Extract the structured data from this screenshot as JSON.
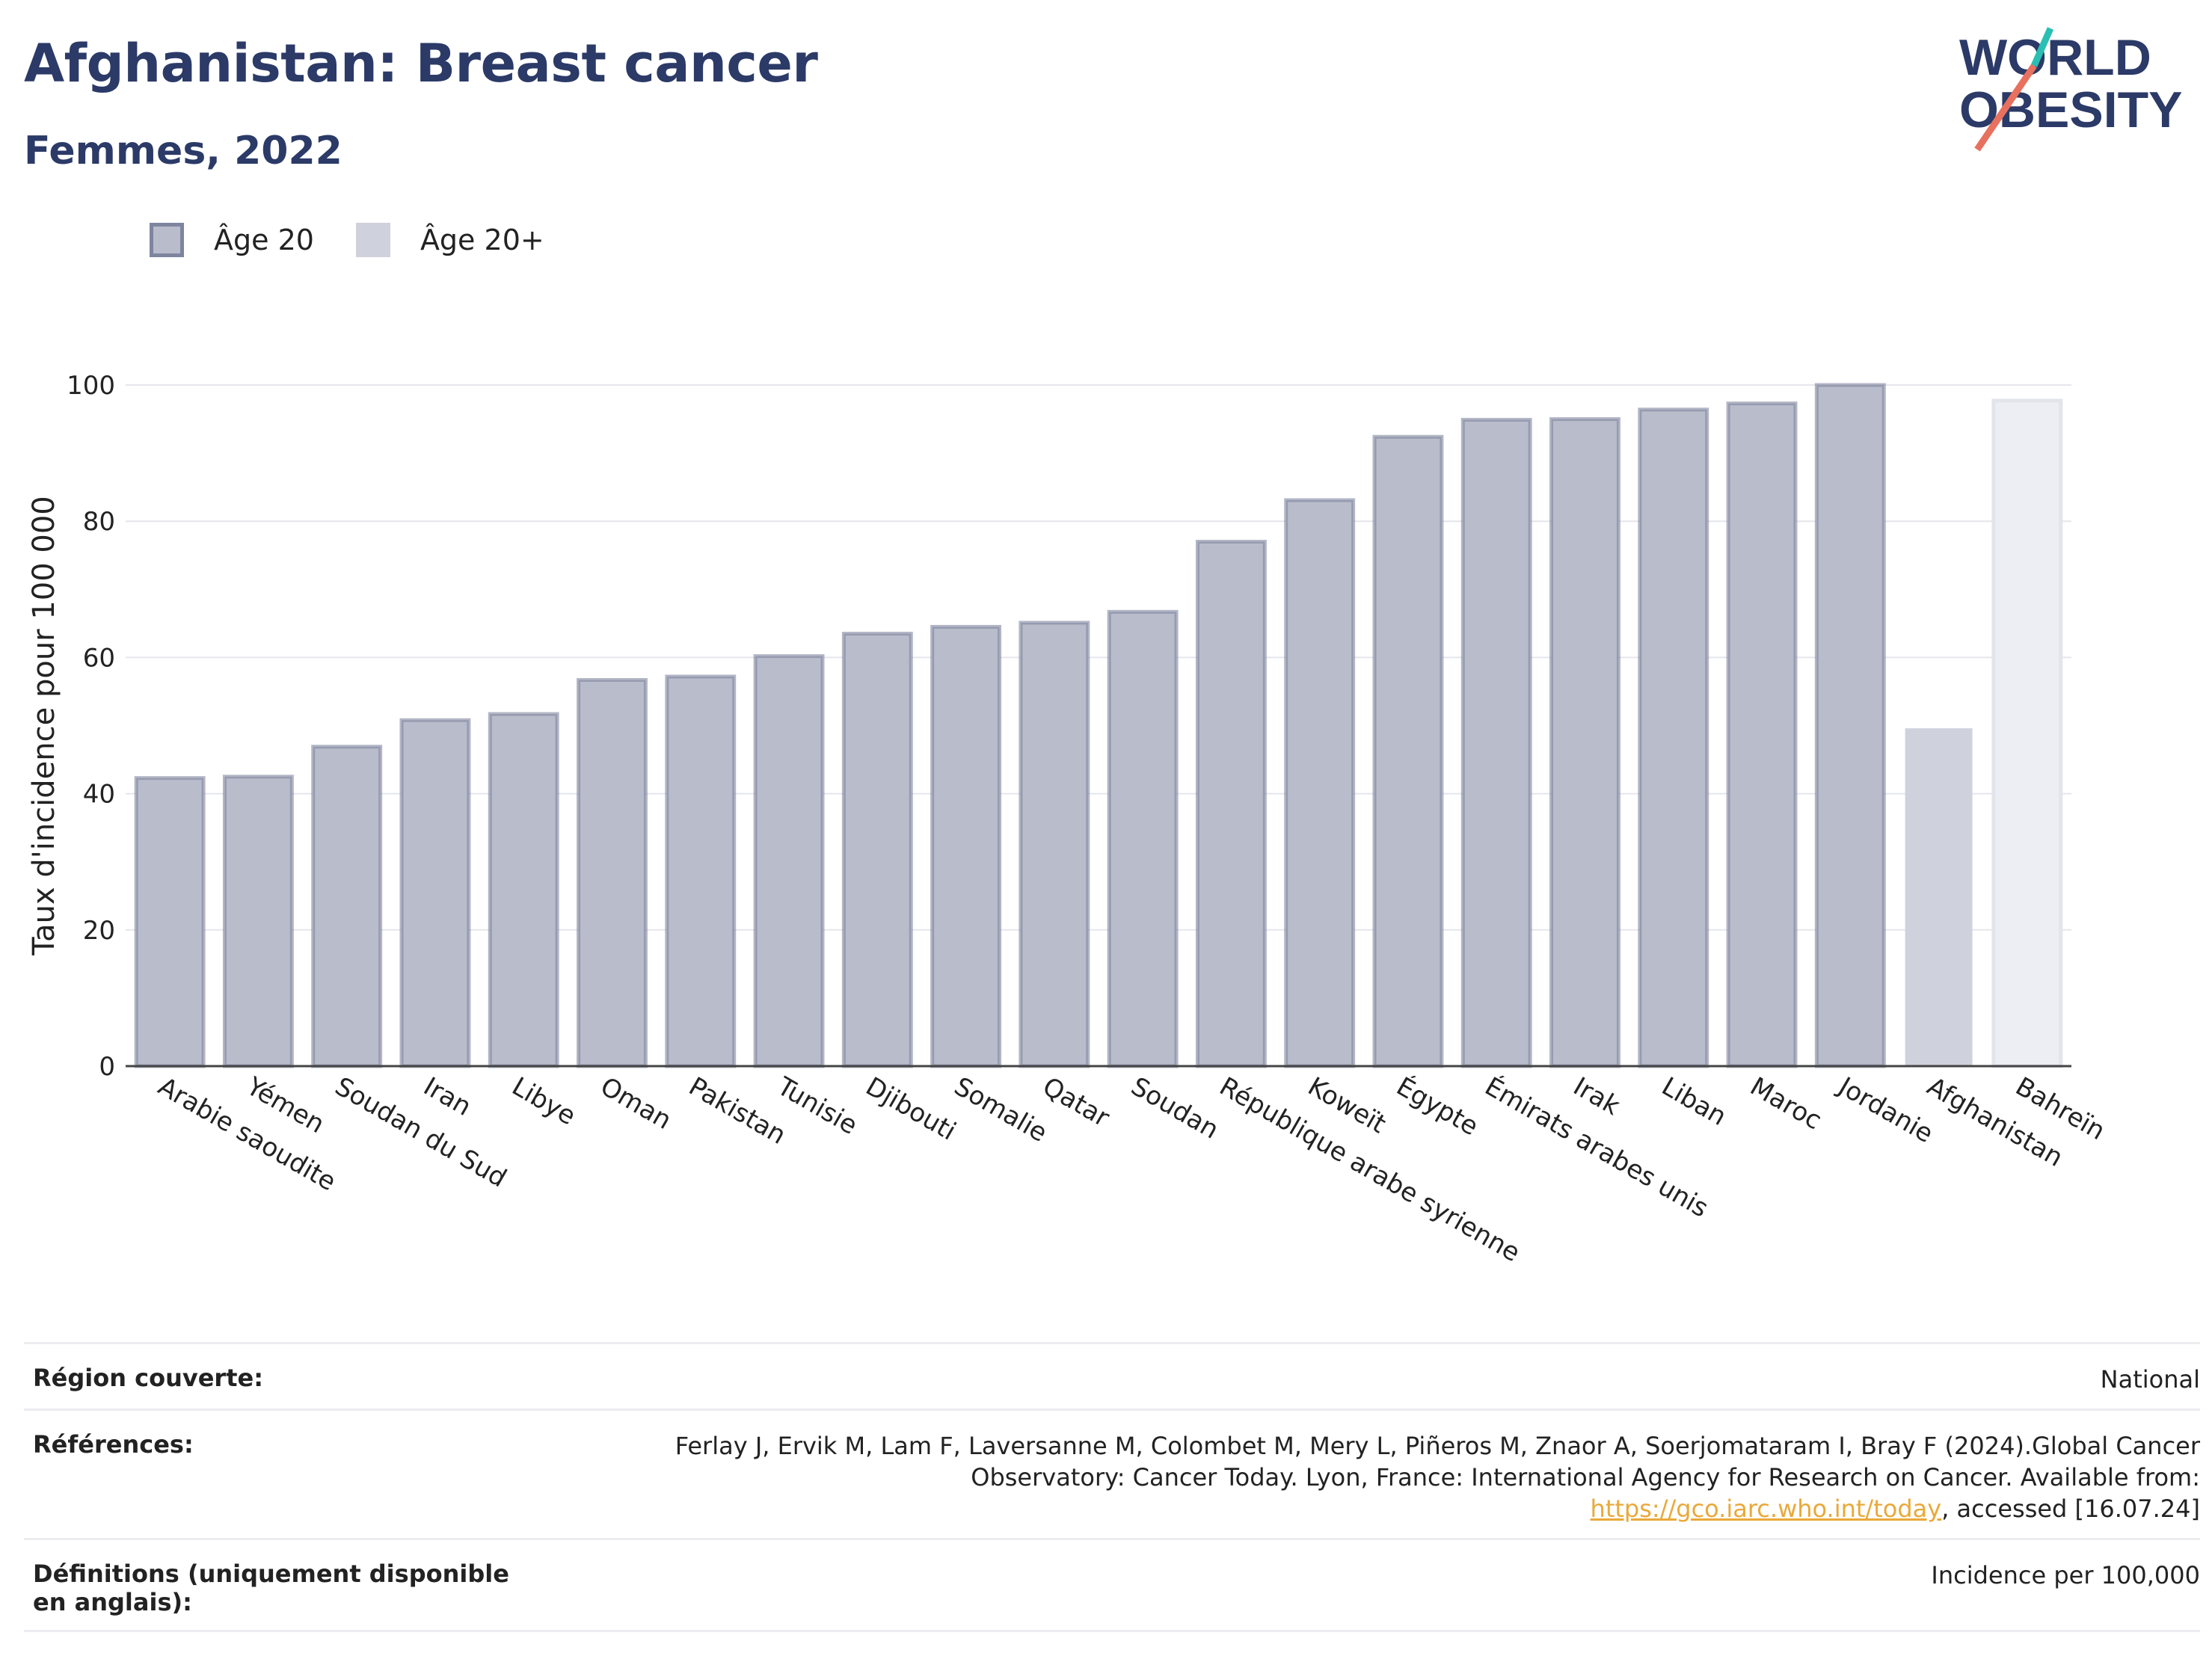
{
  "header": {
    "title": "Afghanistan: Breast cancer",
    "subtitle": "Femmes, 2022",
    "logo_line1": "WORLD",
    "logo_line2": "OBESITY"
  },
  "legend": {
    "series_a": "Âge 20",
    "series_b": "Âge 20+"
  },
  "colors": {
    "title": "#2b3a67",
    "bar_fill": "#b9bccb",
    "bar_border": "#7e859f",
    "highlight_fill": "#cfd1dc",
    "comparison_fill": "#eceef3",
    "logo_accent_teal": "#2bbfb3",
    "logo_accent_coral": "#e8705e"
  },
  "chart_data": {
    "type": "bar",
    "ylabel": "Taux d'incidence pour 100 000",
    "ylim": [
      0,
      100
    ],
    "yticks": [
      0,
      20,
      40,
      60,
      80,
      100
    ],
    "grid": true,
    "categories": [
      "Arabie saoudite",
      "Yémen",
      "Soudan du Sud",
      "Iran",
      "Libye",
      "Oman",
      "Pakistan",
      "Tunisie",
      "Djibouti",
      "Somalie",
      "Qatar",
      "Soudan",
      "République arabe syrienne",
      "Koweït",
      "Égypte",
      "Émirats arabes unis",
      "Irak",
      "Liban",
      "Maroc",
      "Jordanie",
      "Afghanistan",
      "Bahreïn"
    ],
    "values": [
      42.3,
      42.5,
      46.9,
      50.8,
      51.7,
      56.7,
      57.2,
      60.2,
      63.5,
      64.5,
      65.1,
      66.7,
      77.0,
      83.1,
      92.4,
      94.9,
      95.0,
      96.4,
      97.3,
      100.0,
      49.6,
      97.7
    ],
    "styles": [
      "a",
      "a",
      "a",
      "a",
      "a",
      "a",
      "a",
      "a",
      "a",
      "a",
      "a",
      "a",
      "a",
      "a",
      "a",
      "a",
      "a",
      "a",
      "a",
      "a",
      "b",
      "c"
    ]
  },
  "info": {
    "region_label": "Région couverte:",
    "region_value": "National",
    "references_label": "Références:",
    "references_text": "Ferlay J, Ervik M, Lam F, Laversanne M, Colombet M, Mery L, Piñeros M, Znaor A, Soerjomataram I, Bray F (2024).Global Cancer Observatory: Cancer Today. Lyon, France: International Agency for Research on Cancer. Available from: ",
    "references_link": "https://gco.iarc.who.int/today",
    "references_suffix": ", accessed [16.07.24]",
    "definitions_label": "Définitions (uniquement disponible en anglais):",
    "definitions_value": "Incidence per 100,000"
  }
}
